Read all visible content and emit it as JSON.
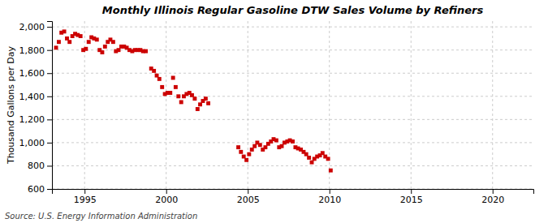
{
  "chart_data": {
    "type": "scatter",
    "title": "Monthly Illinois Regular Gasoline DTW Sales Volume by Refiners",
    "ylabel": "Thousand Gallons per Day",
    "source": "Source: U.S. Energy Information Administration",
    "color": "#cc0000",
    "marker": "square",
    "grid": true,
    "xlim": [
      1993.0,
      2022.5
    ],
    "ylim": [
      600,
      2050
    ],
    "xticks": [
      1995,
      2000,
      2005,
      2010,
      2015,
      2020
    ],
    "yticks": [
      600,
      800,
      {
        "value": 1000,
        "label": "1,000"
      },
      {
        "value": 1200,
        "label": "1,200"
      },
      {
        "value": 1400,
        "label": "1,400"
      },
      {
        "value": 1600,
        "label": "1,600"
      },
      {
        "value": 1800,
        "label": "1,800"
      },
      {
        "value": 2000,
        "label": "2,000"
      }
    ],
    "x": [
      1993.25,
      1993.42,
      1993.58,
      1993.75,
      1993.92,
      1994.08,
      1994.25,
      1994.42,
      1994.58,
      1994.75,
      1994.92,
      1995.08,
      1995.25,
      1995.42,
      1995.58,
      1995.75,
      1995.92,
      1996.08,
      1996.25,
      1996.42,
      1996.58,
      1996.75,
      1996.92,
      1997.08,
      1997.25,
      1997.42,
      1997.58,
      1997.75,
      1997.92,
      1998.08,
      1998.25,
      1998.42,
      1998.58,
      1998.75,
      1999.08,
      1999.25,
      1999.42,
      1999.58,
      1999.75,
      1999.92,
      2000.08,
      2000.25,
      2000.42,
      2000.58,
      2000.75,
      2000.92,
      2001.08,
      2001.25,
      2001.42,
      2001.58,
      2001.75,
      2001.92,
      2002.08,
      2002.25,
      2002.42,
      2002.58,
      2004.42,
      2004.58,
      2004.75,
      2004.92,
      2005.08,
      2005.25,
      2005.42,
      2005.58,
      2005.75,
      2005.92,
      2006.08,
      2006.25,
      2006.42,
      2006.58,
      2006.75,
      2006.92,
      2007.08,
      2007.25,
      2007.42,
      2007.58,
      2007.75,
      2007.92,
      2008.08,
      2008.25,
      2008.42,
      2008.58,
      2008.75,
      2008.92,
      2009.08,
      2009.25,
      2009.42,
      2009.58,
      2009.75,
      2009.92,
      2010.08
    ],
    "values": [
      1820,
      1870,
      1950,
      1960,
      1900,
      1870,
      1920,
      1940,
      1930,
      1920,
      1800,
      1810,
      1870,
      1910,
      1900,
      1890,
      1800,
      1780,
      1830,
      1870,
      1890,
      1870,
      1790,
      1800,
      1830,
      1830,
      1820,
      1800,
      1790,
      1800,
      1800,
      1800,
      1790,
      1790,
      1640,
      1620,
      1580,
      1550,
      1480,
      1420,
      1430,
      1430,
      1560,
      1480,
      1400,
      1350,
      1400,
      1420,
      1430,
      1410,
      1380,
      1290,
      1330,
      1360,
      1380,
      1340,
      960,
      920,
      880,
      850,
      900,
      940,
      970,
      1000,
      980,
      940,
      960,
      990,
      1010,
      1030,
      1020,
      960,
      970,
      1000,
      1010,
      1020,
      1010,
      960,
      950,
      940,
      920,
      900,
      870,
      830,
      860,
      880,
      890,
      910,
      880,
      860,
      760
    ]
  }
}
